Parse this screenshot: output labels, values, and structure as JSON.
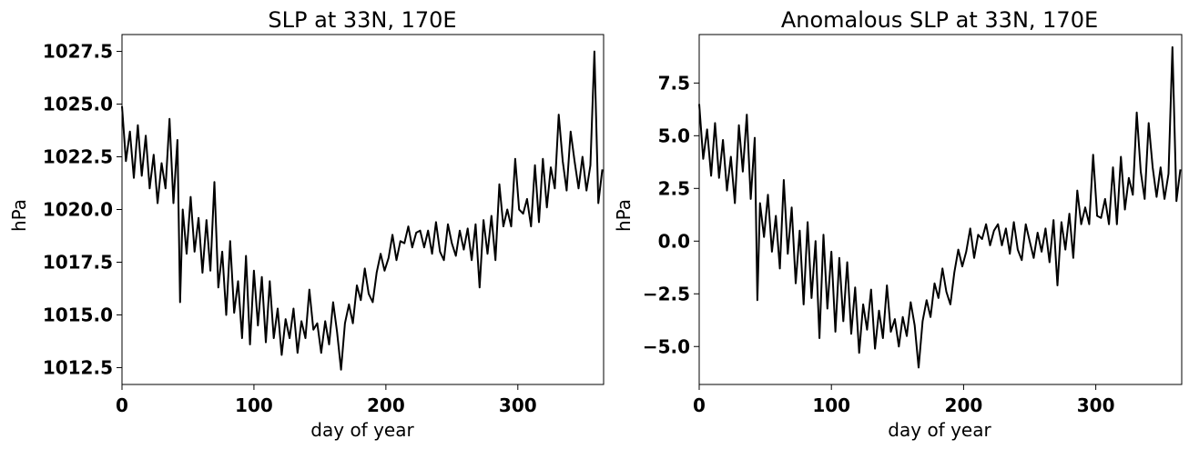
{
  "chart_data": [
    {
      "type": "line",
      "title": "SLP at 33N, 170E",
      "xlabel": "day of year",
      "ylabel": "hPa",
      "xlim": [
        0,
        365
      ],
      "ylim": [
        1011.7,
        1028.3
      ],
      "xticks": [
        0,
        100,
        200,
        300
      ],
      "xtick_labels": [
        "0",
        "100",
        "200",
        "300"
      ],
      "yticks": [
        1012.5,
        1015.0,
        1017.5,
        1020.0,
        1022.5,
        1025.0,
        1027.5
      ],
      "ytick_labels": [
        "1012.5",
        "1015.0",
        "1017.5",
        "1020.0",
        "1022.5",
        "1025.0",
        "1027.5"
      ],
      "grid": false,
      "line_color": "#000000",
      "series": [
        {
          "x": [
            0,
            3,
            6,
            9,
            12,
            15,
            18,
            21,
            24,
            27,
            30,
            33,
            36,
            39,
            42,
            44,
            46,
            49,
            52,
            55,
            58,
            61,
            64,
            67,
            70,
            73,
            76,
            79,
            82,
            85,
            88,
            91,
            94,
            97,
            100,
            103,
            106,
            109,
            112,
            115,
            118,
            121,
            124,
            127,
            130,
            133,
            136,
            139,
            142,
            145,
            148,
            151,
            154,
            157,
            160,
            163,
            166,
            169,
            172,
            175,
            178,
            181,
            184,
            187,
            190,
            193,
            196,
            199,
            202,
            205,
            208,
            211,
            214,
            217,
            220,
            223,
            226,
            229,
            232,
            235,
            238,
            241,
            244,
            247,
            250,
            253,
            256,
            259,
            262,
            265,
            268,
            271,
            274,
            277,
            280,
            283,
            286,
            289,
            292,
            295,
            298,
            301,
            304,
            307,
            310,
            313,
            316,
            319,
            322,
            325,
            328,
            331,
            334,
            337,
            340,
            343,
            346,
            349,
            352,
            355,
            358,
            361,
            364
          ],
          "y": [
            1024.9,
            1022.3,
            1023.7,
            1021.5,
            1024.0,
            1021.6,
            1023.5,
            1021.0,
            1022.6,
            1020.3,
            1022.2,
            1021.0,
            1024.3,
            1020.3,
            1023.3,
            1015.6,
            1020.0,
            1017.9,
            1020.6,
            1018.0,
            1019.6,
            1017.0,
            1019.5,
            1017.1,
            1021.3,
            1016.3,
            1018.0,
            1015.0,
            1018.5,
            1015.1,
            1016.6,
            1013.9,
            1017.8,
            1013.6,
            1017.1,
            1014.5,
            1016.8,
            1013.7,
            1016.6,
            1013.9,
            1015.3,
            1013.1,
            1014.8,
            1013.9,
            1015.3,
            1013.2,
            1014.7,
            1013.9,
            1016.2,
            1014.3,
            1014.6,
            1013.2,
            1014.7,
            1013.6,
            1015.6,
            1014.2,
            1012.4,
            1014.6,
            1015.5,
            1014.6,
            1016.4,
            1015.7,
            1017.2,
            1016.0,
            1015.6,
            1017.0,
            1017.9,
            1017.1,
            1017.7,
            1018.8,
            1017.6,
            1018.5,
            1018.4,
            1019.2,
            1018.2,
            1018.9,
            1019.0,
            1018.2,
            1019.0,
            1017.9,
            1019.4,
            1018.0,
            1017.6,
            1019.3,
            1018.4,
            1017.8,
            1019.0,
            1018.1,
            1019.1,
            1017.6,
            1019.3,
            1016.3,
            1019.5,
            1017.9,
            1019.7,
            1017.6,
            1021.2,
            1019.2,
            1020.0,
            1019.2,
            1022.4,
            1020.0,
            1019.8,
            1020.5,
            1019.2,
            1022.1,
            1019.4,
            1022.4,
            1020.1,
            1022.0,
            1021.0,
            1024.5,
            1022.3,
            1020.9,
            1023.7,
            1022.3,
            1021.0,
            1022.5,
            1020.9,
            1022.1,
            1027.5,
            1020.3,
            1021.9
          ]
        }
      ]
    },
    {
      "type": "line",
      "title": "Anomalous SLP at 33N, 170E",
      "xlabel": "day of year",
      "ylabel": "hPa",
      "xlim": [
        0,
        365
      ],
      "ylim": [
        -6.8,
        9.8
      ],
      "xticks": [
        0,
        100,
        200,
        300
      ],
      "xtick_labels": [
        "0",
        "100",
        "200",
        "300"
      ],
      "yticks": [
        -5.0,
        -2.5,
        0.0,
        2.5,
        5.0,
        7.5
      ],
      "ytick_labels": [
        "−5.0",
        "−2.5",
        "0.0",
        "2.5",
        "5.0",
        "7.5"
      ],
      "grid": false,
      "line_color": "#000000",
      "series": [
        {
          "x": [
            0,
            3,
            6,
            9,
            12,
            15,
            18,
            21,
            24,
            27,
            30,
            33,
            36,
            39,
            42,
            44,
            46,
            49,
            52,
            55,
            58,
            61,
            64,
            67,
            70,
            73,
            76,
            79,
            82,
            85,
            88,
            91,
            94,
            97,
            100,
            103,
            106,
            109,
            112,
            115,
            118,
            121,
            124,
            127,
            130,
            133,
            136,
            139,
            142,
            145,
            148,
            151,
            154,
            157,
            160,
            163,
            166,
            169,
            172,
            175,
            178,
            181,
            184,
            187,
            190,
            193,
            196,
            199,
            202,
            205,
            208,
            211,
            214,
            217,
            220,
            223,
            226,
            229,
            232,
            235,
            238,
            241,
            244,
            247,
            250,
            253,
            256,
            259,
            262,
            265,
            268,
            271,
            274,
            277,
            280,
            283,
            286,
            289,
            292,
            295,
            298,
            301,
            304,
            307,
            310,
            313,
            316,
            319,
            322,
            325,
            328,
            331,
            334,
            337,
            340,
            343,
            346,
            349,
            352,
            355,
            358,
            361,
            364
          ],
          "y": [
            6.5,
            3.9,
            5.3,
            3.1,
            5.6,
            3.0,
            4.8,
            2.4,
            4.0,
            1.8,
            5.5,
            3.3,
            6.0,
            2.0,
            4.9,
            -2.8,
            1.8,
            0.2,
            2.2,
            -0.5,
            1.2,
            -1.3,
            2.9,
            -0.6,
            1.6,
            -2.0,
            0.5,
            -3.0,
            0.9,
            -2.7,
            0.0,
            -4.6,
            0.3,
            -3.2,
            -0.5,
            -4.3,
            -0.8,
            -3.8,
            -1.0,
            -4.4,
            -2.2,
            -5.3,
            -3.0,
            -4.2,
            -2.3,
            -5.1,
            -3.3,
            -4.6,
            -2.1,
            -4.3,
            -3.7,
            -5.0,
            -3.6,
            -4.5,
            -2.9,
            -4.0,
            -6.0,
            -3.8,
            -2.8,
            -3.6,
            -2.0,
            -2.7,
            -1.3,
            -2.4,
            -3.0,
            -1.5,
            -0.4,
            -1.2,
            -0.5,
            0.6,
            -0.8,
            0.3,
            0.1,
            0.8,
            -0.2,
            0.5,
            0.8,
            -0.2,
            0.6,
            -0.6,
            0.9,
            -0.4,
            -0.9,
            0.8,
            0.0,
            -0.8,
            0.4,
            -0.5,
            0.6,
            -1.0,
            1.0,
            -2.1,
            0.9,
            -0.4,
            1.3,
            -0.8,
            2.4,
            0.8,
            1.6,
            0.8,
            4.1,
            1.2,
            1.1,
            2.0,
            0.8,
            3.5,
            0.8,
            4.0,
            1.5,
            3.0,
            2.2,
            6.1,
            3.3,
            2.0,
            5.6,
            3.5,
            2.1,
            3.5,
            2.0,
            3.2,
            9.2,
            1.9,
            3.4
          ]
        }
      ]
    }
  ]
}
